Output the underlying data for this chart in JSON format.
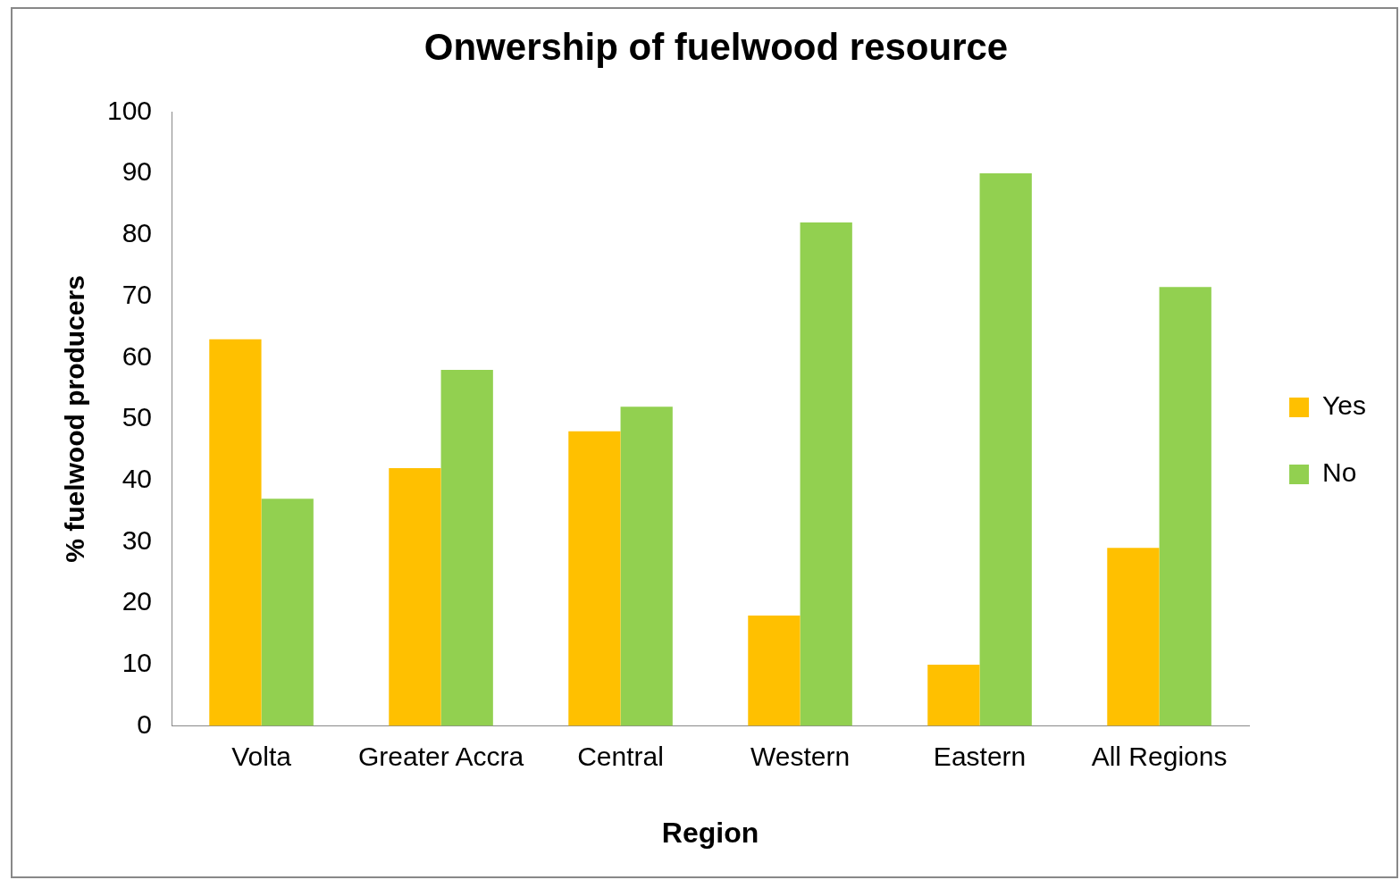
{
  "chart_data": {
    "type": "bar",
    "title": "Onwership of fuelwood resource",
    "xlabel": "Region",
    "ylabel": "% fuelwood producers",
    "categories": [
      "Volta",
      "Greater Accra",
      "Central",
      "Western",
      "Eastern",
      "All Regions"
    ],
    "series": [
      {
        "name": "Yes",
        "color": "#ffc000",
        "values": [
          63,
          42,
          48,
          18,
          10,
          29
        ]
      },
      {
        "name": "No",
        "color": "#92d050",
        "values": [
          37,
          58,
          52,
          82,
          90,
          71.5
        ]
      }
    ],
    "ylim": [
      0,
      100
    ],
    "yticks": [
      0,
      10,
      20,
      30,
      40,
      50,
      60,
      70,
      80,
      90,
      100
    ],
    "grid": false,
    "legend": "right"
  }
}
